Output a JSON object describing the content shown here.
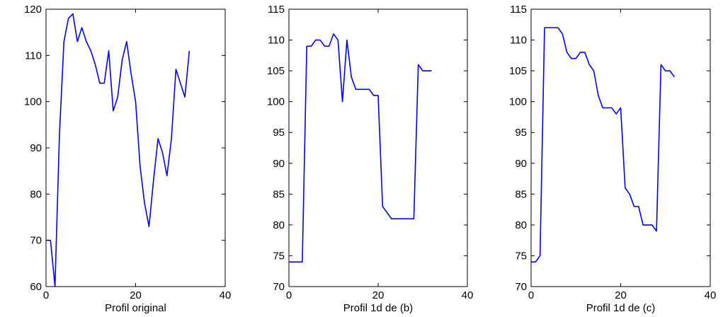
{
  "chart_data": [
    {
      "type": "line",
      "xlabel": "Profil original",
      "xlim": [
        0,
        40
      ],
      "ylim": [
        60,
        120
      ],
      "xticks": [
        0,
        20,
        40
      ],
      "yticks": [
        60,
        70,
        80,
        90,
        100,
        110,
        120
      ],
      "grid": false,
      "color": "#0000ee",
      "series": [
        {
          "x": [
            0,
            1,
            2,
            3,
            4,
            5,
            6,
            7,
            8,
            9,
            10,
            11,
            12,
            13,
            14,
            15,
            16,
            17,
            18,
            19,
            20,
            21,
            22,
            23,
            24,
            25,
            26,
            27,
            28,
            29,
            30,
            31,
            32
          ],
          "y": [
            70,
            70,
            60,
            93,
            113,
            118,
            119,
            113,
            116,
            113,
            111,
            108,
            104,
            104,
            111,
            98,
            101,
            109,
            113,
            106,
            100,
            86,
            78,
            73,
            83,
            92,
            89,
            84,
            92,
            107,
            104,
            101,
            111
          ]
        }
      ]
    },
    {
      "type": "line",
      "xlabel": "Profil 1d de (b)",
      "xlim": [
        0,
        40
      ],
      "ylim": [
        70,
        115
      ],
      "xticks": [
        0,
        20,
        40
      ],
      "yticks": [
        70,
        75,
        80,
        85,
        90,
        95,
        100,
        105,
        110,
        115
      ],
      "grid": false,
      "color": "#0000ee",
      "series": [
        {
          "x": [
            0,
            1,
            2,
            3,
            4,
            5,
            6,
            7,
            8,
            9,
            10,
            11,
            12,
            13,
            14,
            15,
            16,
            17,
            18,
            19,
            20,
            21,
            22,
            23,
            24,
            25,
            26,
            27,
            28,
            29,
            30,
            31,
            32
          ],
          "y": [
            74,
            74,
            74,
            74,
            109,
            109,
            110,
            110,
            109,
            109,
            111,
            110,
            100,
            110,
            104,
            102,
            102,
            102,
            102,
            101,
            101,
            83,
            82,
            81,
            81,
            81,
            81,
            81,
            81,
            106,
            105,
            105,
            105
          ]
        }
      ]
    },
    {
      "type": "line",
      "xlabel": "Profil 1d de (c)",
      "xlim": [
        0,
        40
      ],
      "ylim": [
        70,
        115
      ],
      "xticks": [
        0,
        20,
        40
      ],
      "yticks": [
        70,
        75,
        80,
        85,
        90,
        95,
        100,
        105,
        110,
        115
      ],
      "grid": false,
      "color": "#0000ee",
      "series": [
        {
          "x": [
            0,
            1,
            2,
            3,
            4,
            5,
            6,
            7,
            8,
            9,
            10,
            11,
            12,
            13,
            14,
            15,
            16,
            17,
            18,
            19,
            20,
            21,
            22,
            23,
            24,
            25,
            26,
            27,
            28,
            29,
            30,
            31,
            32
          ],
          "y": [
            74,
            74,
            75,
            112,
            112,
            112,
            112,
            111,
            108,
            107,
            107,
            108,
            108,
            106,
            105,
            101,
            99,
            99,
            99,
            98,
            99,
            86,
            85,
            83,
            83,
            80,
            80,
            80,
            79,
            106,
            105,
            105,
            104
          ]
        }
      ]
    }
  ]
}
